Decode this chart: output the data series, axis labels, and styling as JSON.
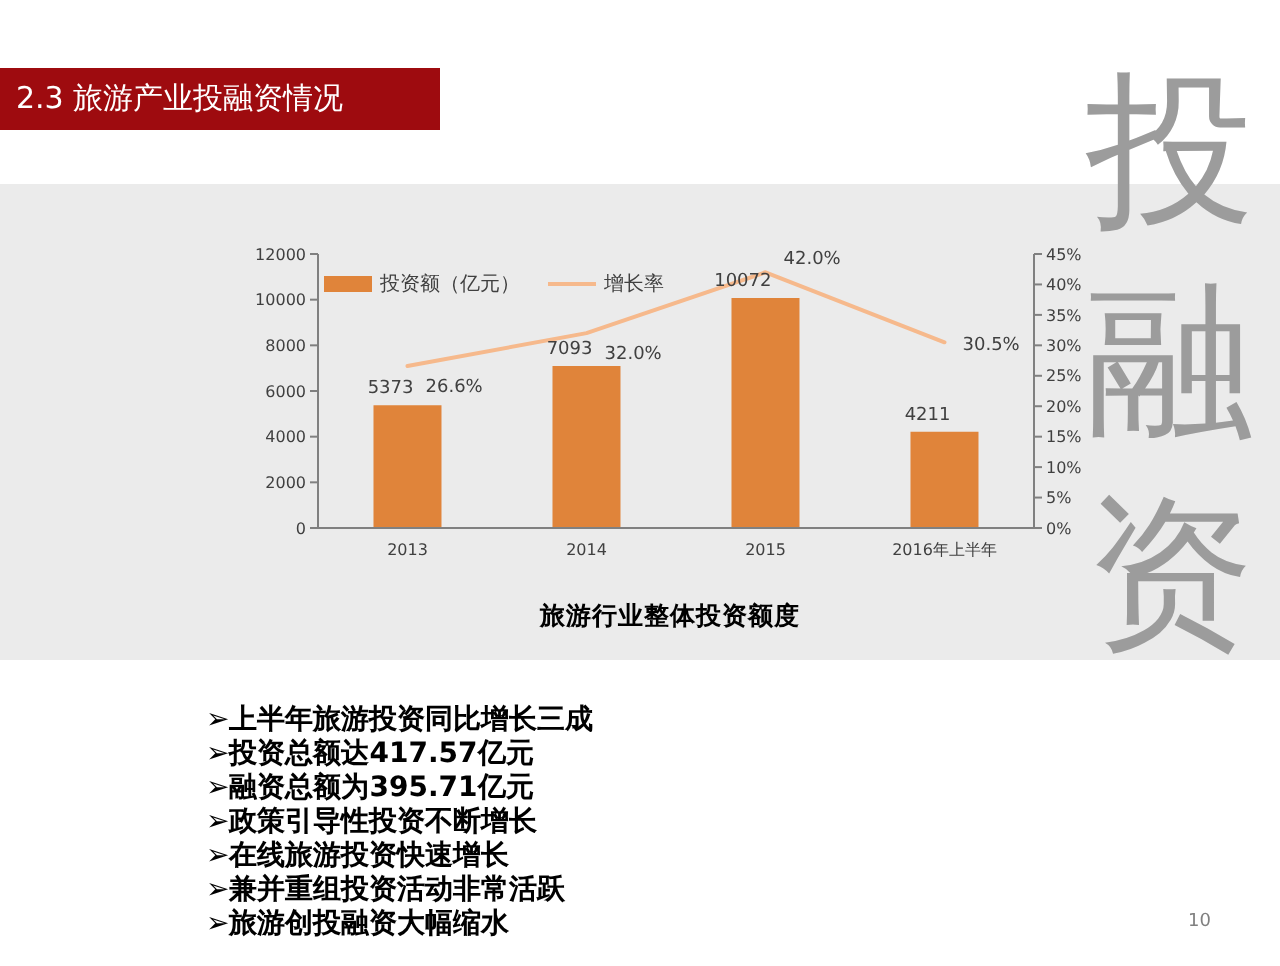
{
  "chart_data": {
    "type": "bar",
    "title": "2.3 旅游产业投融资情况",
    "subtitle": "旅游行业整体投资额度",
    "categories": [
      "2013",
      "2014",
      "2015",
      "2016年上半年"
    ],
    "series": [
      {
        "name": "投资额（亿元）",
        "color": "#e0843a",
        "values": [
          5373,
          7093,
          10072,
          4211
        ],
        "value_labels": [
          "5373",
          "7093",
          "10072",
          "4211"
        ]
      },
      {
        "name": "增长率",
        "type": "line",
        "axis": "y2",
        "color": "#f6b98c",
        "values": [
          26.6,
          32.0,
          42.0,
          30.5
        ],
        "value_labels": [
          "26.6%",
          "32.0%",
          "42.0%",
          "30.5%"
        ]
      }
    ],
    "ylim": [
      0,
      12000
    ],
    "yticks": [
      0,
      2000,
      4000,
      6000,
      8000,
      10000,
      12000
    ],
    "y2lim": [
      0,
      45
    ],
    "y2ticks": [
      {
        "value": 0,
        "label": "0%"
      },
      {
        "value": 5,
        "label": "5%"
      },
      {
        "value": 10,
        "label": "10%"
      },
      {
        "value": 15,
        "label": "15%"
      },
      {
        "value": 20,
        "label": "20%"
      },
      {
        "value": 25,
        "label": "25%"
      },
      {
        "value": 30,
        "label": "30%"
      },
      {
        "value": 35,
        "label": "35%"
      },
      {
        "value": 40,
        "label": "40%"
      },
      {
        "value": 45,
        "label": "45%"
      }
    ],
    "legend": "top left",
    "marker": "none",
    "line_style": "solid",
    "annotations": [
      "投融资",
      "➢上半年旅游投资同比增长三成",
      "➢投资总额达417.57亿元",
      "➢融资总额为395.71亿元",
      "➢政策引导性投资不断增长",
      "➢在线旅游投资快速增长",
      "➢兼并重组投资活动非常活跃",
      "➢旅游创投融资大幅缩水",
      "10"
    ]
  }
}
